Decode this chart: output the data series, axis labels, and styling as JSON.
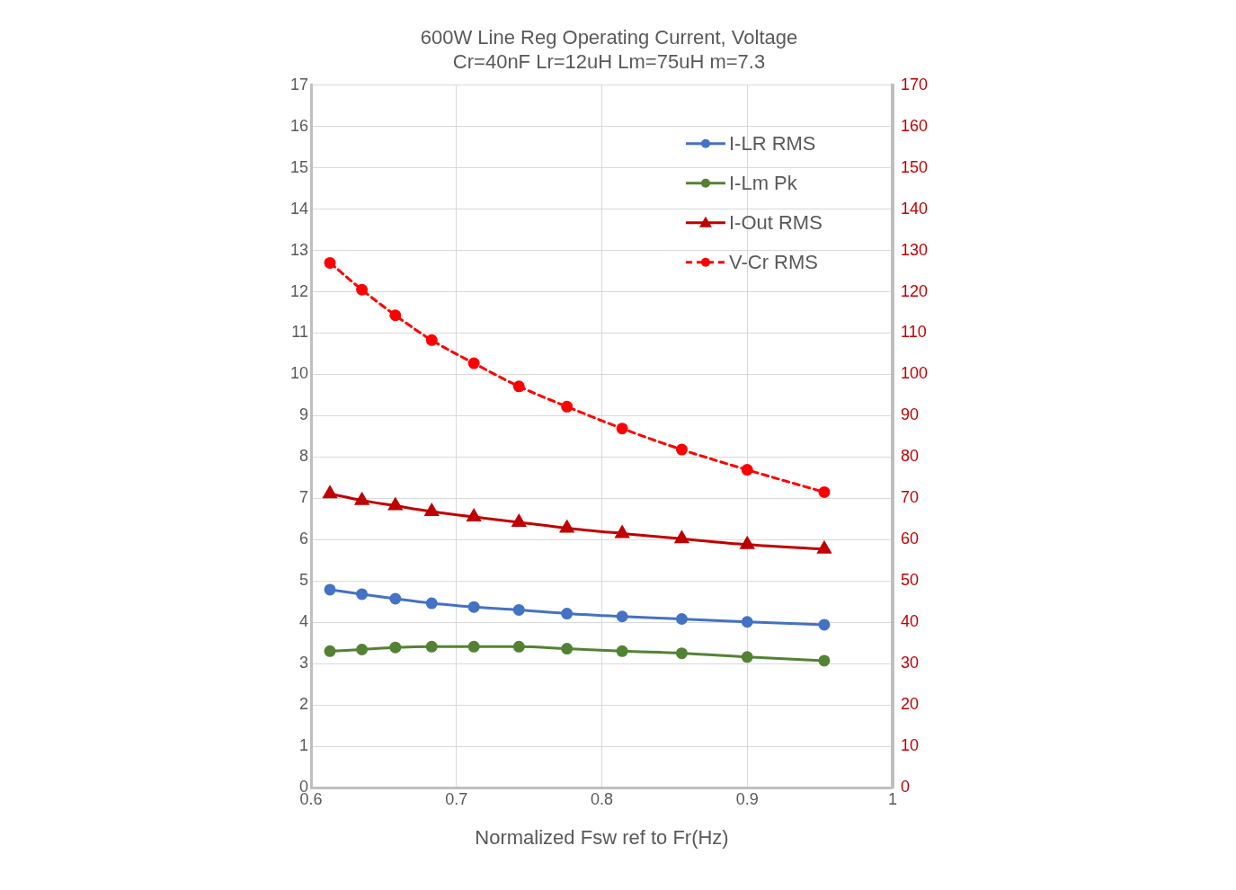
{
  "chart_data": {
    "type": "line",
    "title": "600W Line Reg Operating Current, Voltage",
    "subtitle": "Cr=40nF Lr=12uH Lm=75uH m=7.3",
    "xlabel": "Normalized Fsw ref to Fr(Hz)",
    "x": [
      0.613,
      0.635,
      0.658,
      0.683,
      0.712,
      0.743,
      0.776,
      0.814,
      0.855,
      0.9,
      0.953
    ],
    "series": [
      {
        "name": "I-LR RMS",
        "color": "#4472c4",
        "marker": "circle",
        "line_style": "solid",
        "values": [
          4.79,
          4.68,
          4.57,
          4.46,
          4.37,
          4.3,
          4.21,
          4.14,
          4.08,
          4.01,
          3.94
        ]
      },
      {
        "name": "I-Lm Pk",
        "color": "#548235",
        "marker": "circle",
        "line_style": "solid",
        "values": [
          3.3,
          3.34,
          3.39,
          3.41,
          3.41,
          3.41,
          3.36,
          3.3,
          3.25,
          3.16,
          3.07
        ]
      },
      {
        "name": "I-Out RMS",
        "color": "#c00000",
        "marker": "triangle",
        "line_style": "solid",
        "values": [
          7.11,
          6.95,
          6.82,
          6.68,
          6.55,
          6.42,
          6.28,
          6.15,
          6.02,
          5.88,
          5.77
        ]
      },
      {
        "name": "V-Cr RMS",
        "color": "#ff0000",
        "marker": "circle",
        "line_style": "dashed",
        "axis": "y2",
        "values": [
          127.0,
          120.5,
          114.3,
          108.3,
          102.7,
          97.1,
          92.2,
          86.9,
          81.8,
          76.9,
          71.5
        ]
      }
    ],
    "xlim": [
      0.6,
      1
    ],
    "xticks": [
      0.6,
      0.7,
      0.8,
      0.9,
      1
    ],
    "ylim": [
      0,
      17
    ],
    "yticks": [
      0,
      1,
      2,
      3,
      4,
      5,
      6,
      7,
      8,
      9,
      10,
      11,
      12,
      13,
      14,
      15,
      16,
      17
    ],
    "y2lim": [
      0,
      170
    ],
    "y2ticks": [
      0,
      10,
      20,
      30,
      40,
      50,
      60,
      70,
      80,
      90,
      100,
      110,
      120,
      130,
      140,
      150,
      160,
      170
    ],
    "grid": true,
    "legend": "top right"
  }
}
